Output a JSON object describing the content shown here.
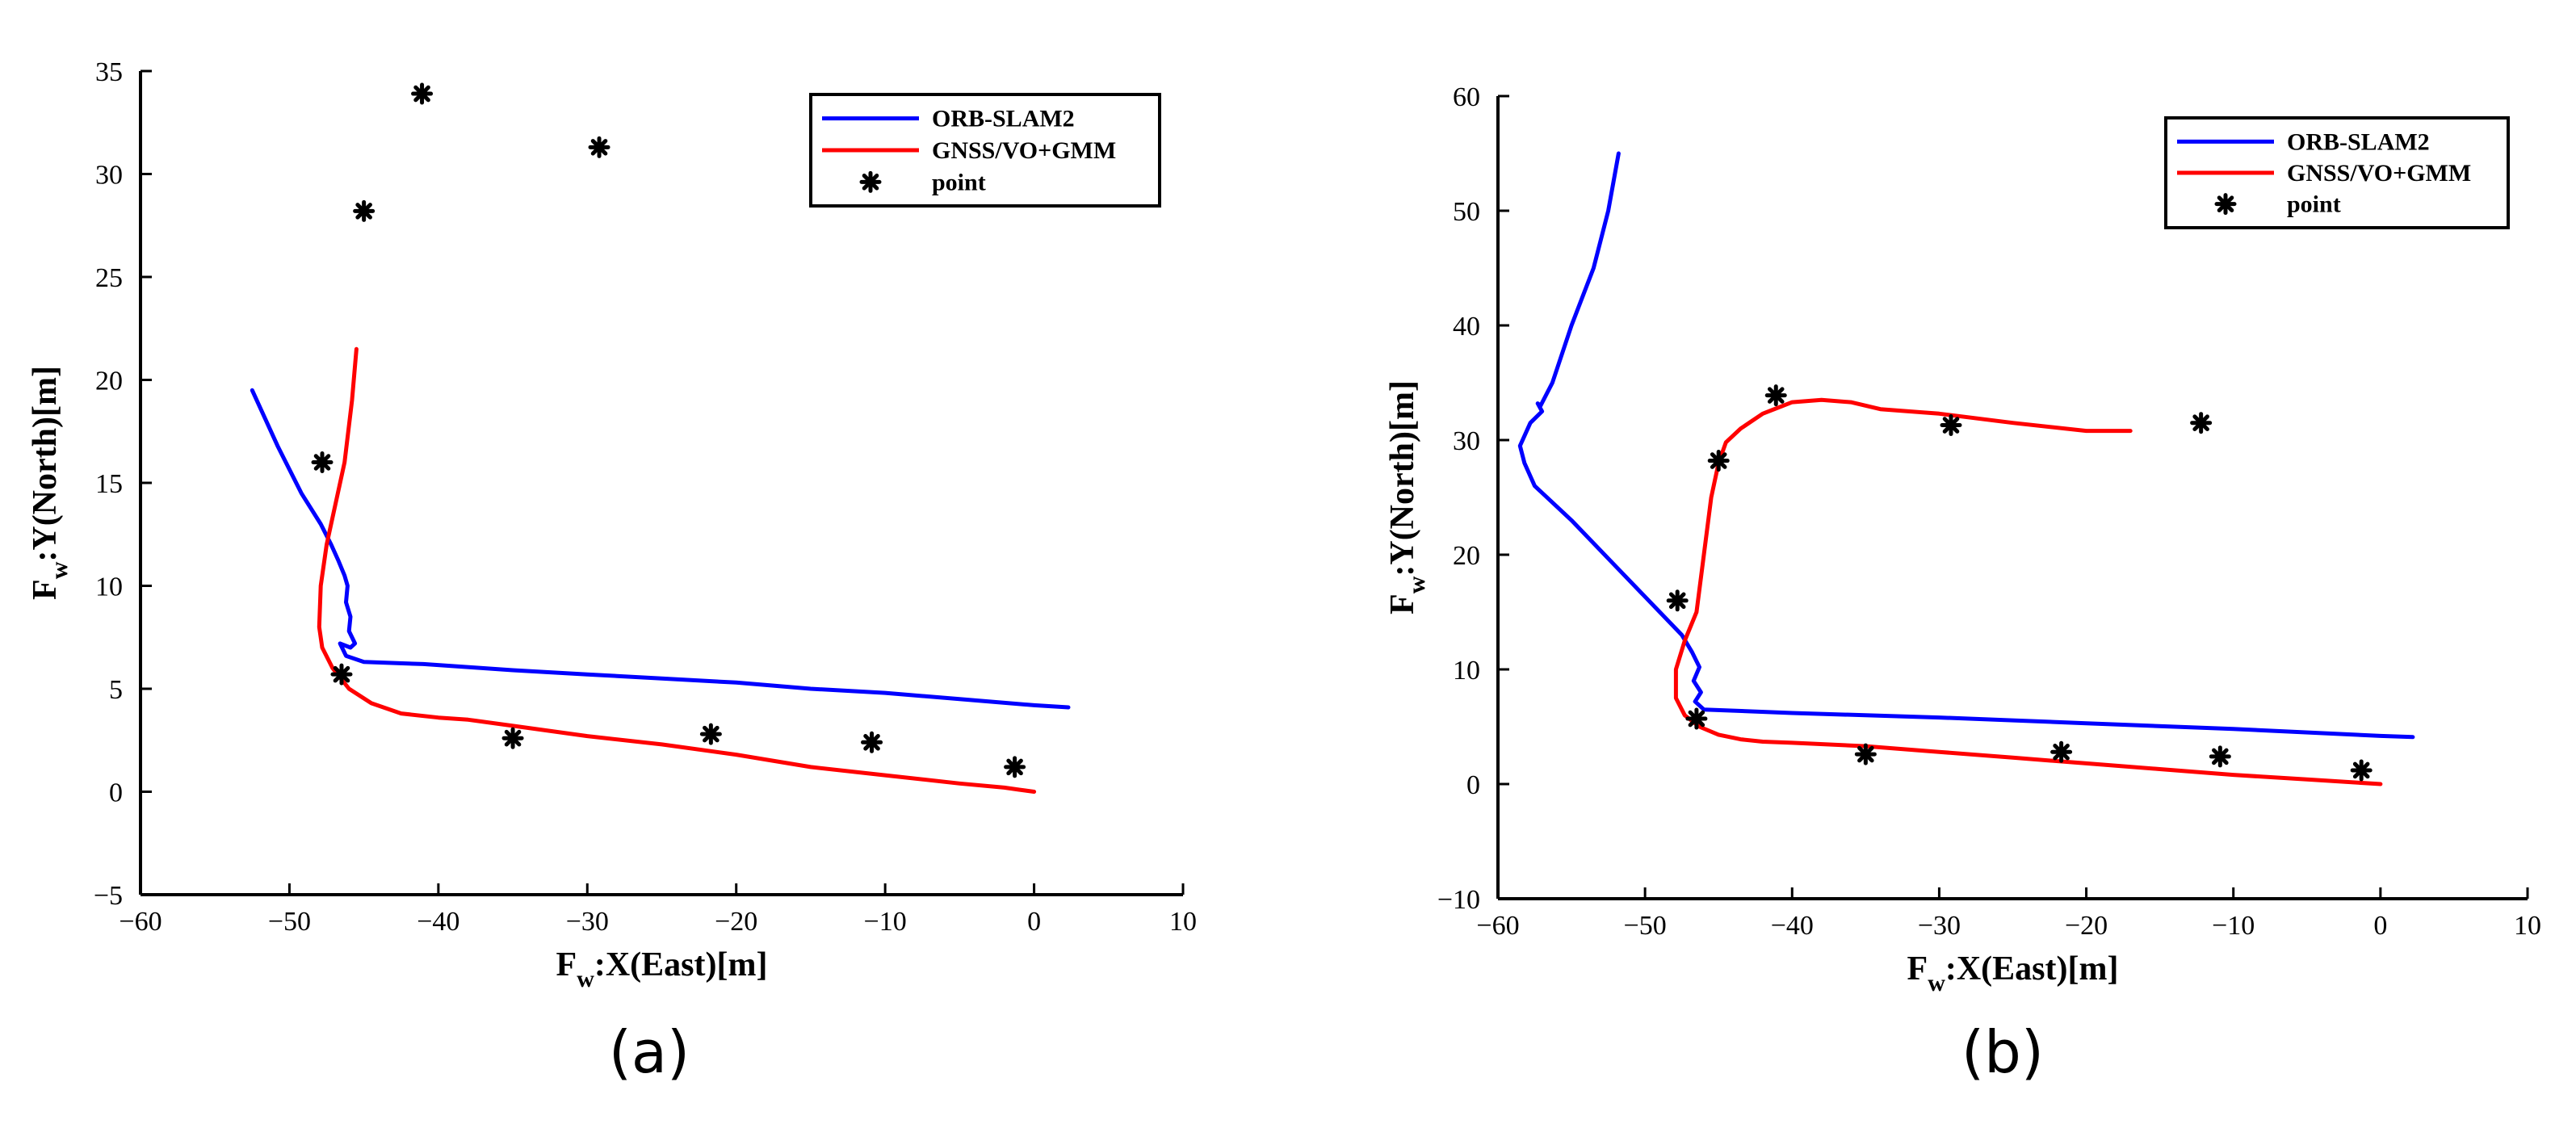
{
  "chart_data": [
    {
      "type": "line",
      "caption": "(a)",
      "xlabel": {
        "main": "F",
        "sub": "w",
        "rest": ":X(East)[m]"
      },
      "ylabel": {
        "main": "F",
        "sub": "w",
        "rest": ":Y(North)[m]"
      },
      "xlim": [
        -60,
        10
      ],
      "ylim": [
        -5,
        35
      ],
      "xticks": [
        -60,
        -50,
        -40,
        -30,
        -20,
        -10,
        0,
        10
      ],
      "yticks": [
        -5,
        0,
        5,
        10,
        15,
        20,
        25,
        30,
        35
      ],
      "xtick_labels": [
        "−60",
        "−50",
        "−40",
        "−30",
        "−20",
        "−10",
        "0",
        "10"
      ],
      "ytick_labels": [
        "−5",
        "0",
        "5",
        "10",
        "15",
        "20",
        "25",
        "30",
        "35"
      ],
      "legend_position": "top-right",
      "series": [
        {
          "name": "ORB-SLAM2",
          "color": "#0000ff",
          "style": "line",
          "x": [
            -52.5,
            -50.8,
            -49.2,
            -47.9,
            -47.2,
            -46.7,
            -46.3,
            -46.1,
            -46.2,
            -45.9,
            -46.0,
            -45.6,
            -45.9,
            -46.6,
            -46.2,
            -45.0,
            -41.0,
            -35.0,
            -30.0,
            -25.0,
            -20.0,
            -15.0,
            -10.0,
            -5.0,
            0.0,
            2.3
          ],
          "y": [
            19.5,
            16.8,
            14.5,
            13.0,
            12.0,
            11.2,
            10.5,
            10.0,
            9.2,
            8.5,
            7.8,
            7.2,
            7.0,
            7.2,
            6.6,
            6.3,
            6.2,
            5.9,
            5.7,
            5.5,
            5.3,
            5.0,
            4.8,
            4.5,
            4.2,
            4.1
          ]
        },
        {
          "name": "GNSS/VO+GMM",
          "color": "#ff0000",
          "style": "line",
          "x": [
            -45.5,
            -45.8,
            -46.3,
            -46.9,
            -47.5,
            -47.9,
            -48.0,
            -47.8,
            -47.1,
            -46.0,
            -44.5,
            -42.5,
            -40.0,
            -38.0,
            -35.0,
            -30.0,
            -25.0,
            -20.0,
            -15.0,
            -10.0,
            -5.0,
            -2.0,
            -1.0,
            0.0
          ],
          "y": [
            21.5,
            19.0,
            16.0,
            14.0,
            12.0,
            10.0,
            8.0,
            7.0,
            6.0,
            5.0,
            4.3,
            3.8,
            3.6,
            3.5,
            3.2,
            2.7,
            2.3,
            1.8,
            1.2,
            0.8,
            0.4,
            0.2,
            0.1,
            0.0
          ]
        },
        {
          "name": "point",
          "color": "#000000",
          "style": "marker",
          "x": [
            -47.8,
            -46.5,
            -45.0,
            -41.1,
            -35.0,
            -29.2,
            -21.7,
            -10.9,
            -1.3
          ],
          "y": [
            16.0,
            5.7,
            28.2,
            33.9,
            2.6,
            31.3,
            2.8,
            2.4,
            1.2
          ]
        }
      ]
    },
    {
      "type": "line",
      "caption": "(b)",
      "xlabel": {
        "main": "F",
        "sub": "w",
        "rest": ":X(East)[m]"
      },
      "ylabel": {
        "main": "F",
        "sub": "w",
        "rest": ":Y(North)[m]"
      },
      "xlim": [
        -60,
        10
      ],
      "ylim": [
        -10,
        60
      ],
      "xticks": [
        -60,
        -50,
        -40,
        -30,
        -20,
        -10,
        0,
        10
      ],
      "yticks": [
        -10,
        0,
        10,
        20,
        30,
        40,
        50,
        60
      ],
      "xtick_labels": [
        "−60",
        "−50",
        "−40",
        "−30",
        "−20",
        "−10",
        "0",
        "10"
      ],
      "ytick_labels": [
        "−10",
        "0",
        "10",
        "20",
        "30",
        "40",
        "50",
        "60"
      ],
      "legend_position": "top-right",
      "series": [
        {
          "name": "ORB-SLAM2",
          "color": "#0000ff",
          "style": "line",
          "x": [
            -51.8,
            -52.5,
            -53.5,
            -55.0,
            -56.3,
            -57.1,
            -57.3,
            -57.0,
            -57.8,
            -58.5,
            -58.2,
            -57.5,
            -55.0,
            -52.0,
            -49.0,
            -47.5,
            -46.8,
            -46.3,
            -46.7,
            -46.2,
            -46.6,
            -46.0,
            -40.0,
            -30.0,
            -20.0,
            -10.0,
            0.0,
            2.2
          ],
          "y": [
            55.0,
            50.0,
            45.0,
            40.0,
            35.0,
            33.0,
            33.2,
            32.5,
            31.5,
            29.5,
            28.0,
            26.0,
            23.0,
            19.0,
            15.0,
            13.0,
            11.5,
            10.2,
            9.0,
            8.0,
            7.2,
            6.5,
            6.2,
            5.8,
            5.3,
            4.8,
            4.2,
            4.1
          ]
        },
        {
          "name": "GNSS/VO+GMM",
          "color": "#ff0000",
          "style": "line",
          "x": [
            -17.0,
            -20.0,
            -25.0,
            -30.0,
            -34.0,
            -36.0,
            -38.0,
            -40.0,
            -42.0,
            -43.5,
            -44.5,
            -45.0,
            -45.5,
            -46.0,
            -46.5,
            -47.3,
            -47.9,
            -47.9,
            -47.3,
            -46.3,
            -45.0,
            -43.5,
            -42.0,
            -40.0,
            -35.0,
            -30.0,
            -25.0,
            -20.0,
            -15.0,
            -10.0,
            -5.0,
            0.0
          ],
          "y": [
            30.8,
            30.8,
            31.5,
            32.3,
            32.7,
            33.3,
            33.5,
            33.3,
            32.3,
            31.0,
            29.8,
            28.0,
            25.0,
            20.0,
            15.0,
            12.5,
            10.0,
            7.5,
            6.0,
            5.0,
            4.3,
            3.9,
            3.7,
            3.6,
            3.3,
            2.8,
            2.3,
            1.8,
            1.3,
            0.8,
            0.4,
            0.0
          ]
        },
        {
          "name": "point",
          "color": "#000000",
          "style": "marker",
          "x": [
            -47.8,
            -46.5,
            -45.0,
            -41.1,
            -35.0,
            -29.2,
            -21.7,
            -12.2,
            -10.9,
            -1.3
          ],
          "y": [
            16.0,
            5.7,
            28.2,
            33.9,
            2.6,
            31.3,
            2.8,
            31.5,
            2.4,
            1.2
          ]
        }
      ]
    }
  ]
}
